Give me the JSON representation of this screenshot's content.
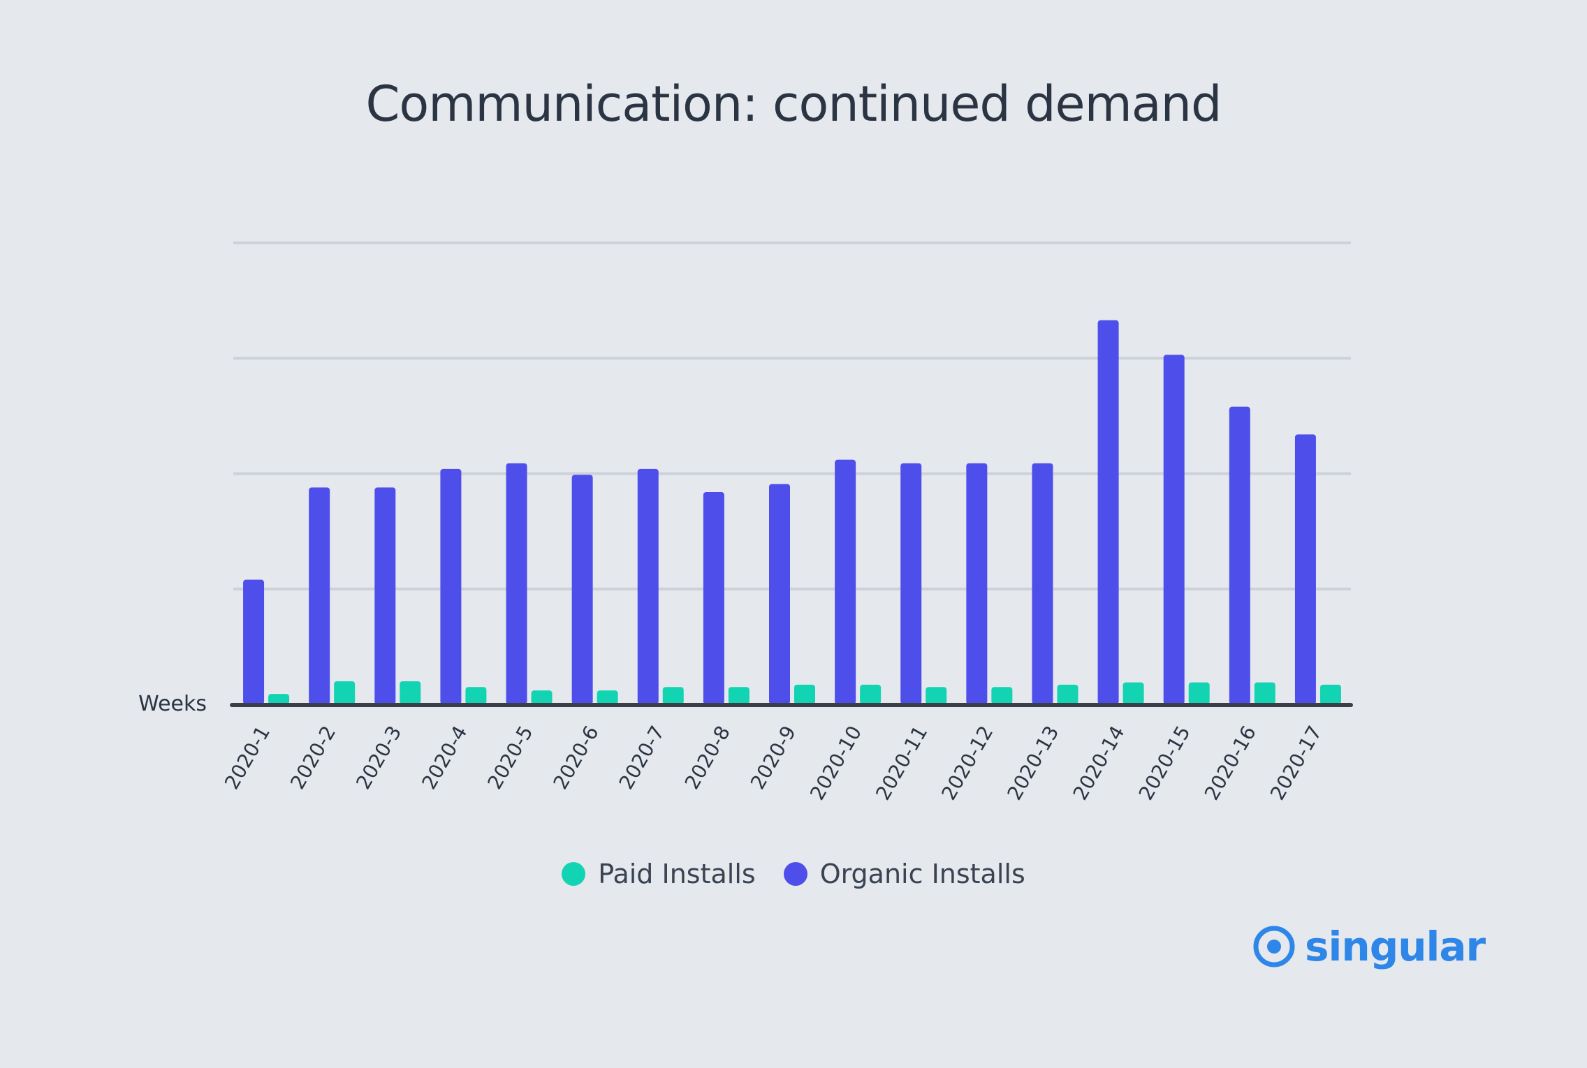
{
  "title": "Communication: continued demand",
  "legend": {
    "paid": "Paid Installs",
    "organic": "Organic Installs"
  },
  "brand": {
    "name": "singular",
    "color": "#2e86e8"
  },
  "colors": {
    "paid": "#12d4b2",
    "organic": "#4e4feb",
    "grid": "#cdd1da",
    "axis": "#3a3f48",
    "text": "#2b3442"
  },
  "chart_data": {
    "type": "bar",
    "title": "Communication: continued demand",
    "xlabel": "Weeks",
    "ylabel": "",
    "ylim": [
      0,
      4
    ],
    "grid": true,
    "y_ticks_labeled": false,
    "legend_position": "bottom-center",
    "categories": [
      "2020-1",
      "2020-2",
      "2020-3",
      "2020-4",
      "2020-5",
      "2020-6",
      "2020-7",
      "2020-8",
      "2020-9",
      "2020-10",
      "2020-11",
      "2020-12",
      "2020-13",
      "2020-14",
      "2020-15",
      "2020-16",
      "2020-17"
    ],
    "series": [
      {
        "name": "Paid Installs",
        "values": [
          0.09,
          0.2,
          0.2,
          0.15,
          0.12,
          0.12,
          0.15,
          0.15,
          0.17,
          0.17,
          0.15,
          0.15,
          0.17,
          0.19,
          0.19,
          0.19,
          0.17
        ]
      },
      {
        "name": "Organic Installs",
        "values": [
          1.08,
          1.88,
          1.88,
          2.04,
          2.09,
          1.99,
          2.04,
          1.84,
          1.91,
          2.12,
          2.09,
          2.09,
          2.09,
          3.33,
          3.03,
          2.58,
          2.34
        ]
      }
    ]
  }
}
